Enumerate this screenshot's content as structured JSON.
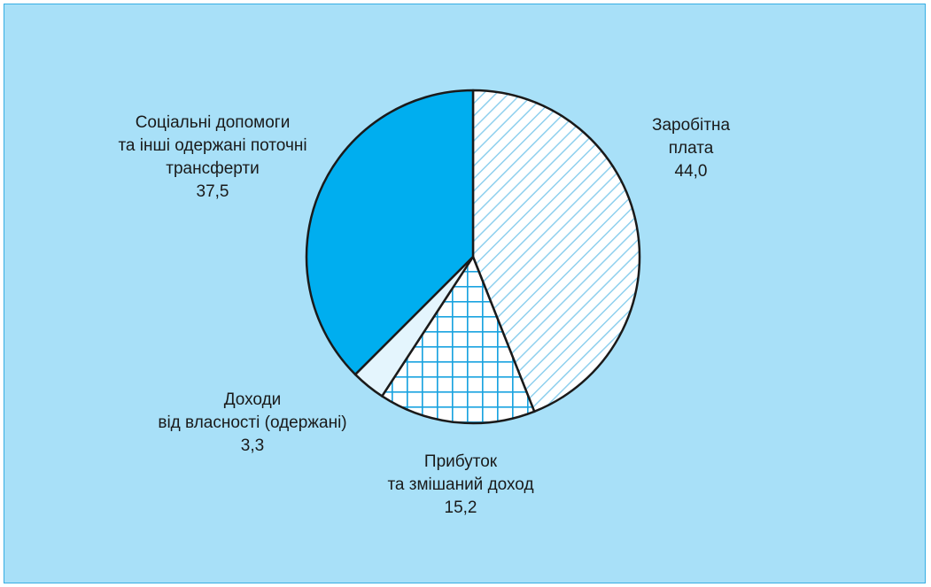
{
  "chart_data": {
    "type": "pie",
    "title": "",
    "slices": [
      {
        "label_lines": [
          "Заробітна",
          "плата"
        ],
        "value": 44.0,
        "value_label": "44,0",
        "fill": "hatch",
        "color": "#ffffff",
        "pattern_color": "#8fd0ee"
      },
      {
        "label_lines": [
          "Прибуток",
          "та змішаний доход"
        ],
        "value": 15.2,
        "value_label": "15,2",
        "fill": "grid",
        "color": "#ffffff",
        "pattern_color": "#1aa3e0"
      },
      {
        "label_lines": [
          "Доходи",
          "від власності (одержані)"
        ],
        "value": 3.3,
        "value_label": "3,3",
        "fill": "solid",
        "color": "#e4f5fd"
      },
      {
        "label_lines": [
          "Соціальні допомоги",
          "та інші одержані поточні",
          "трансферти"
        ],
        "value": 37.5,
        "value_label": "37,5",
        "fill": "solid",
        "color": "#00aeef"
      }
    ],
    "start_angle": "12 o'clock",
    "direction": "clockwise",
    "legend": "none"
  },
  "colors": {
    "background": "#a8e0f8",
    "border": "#36aee3",
    "outline": "#1a1a1a"
  }
}
